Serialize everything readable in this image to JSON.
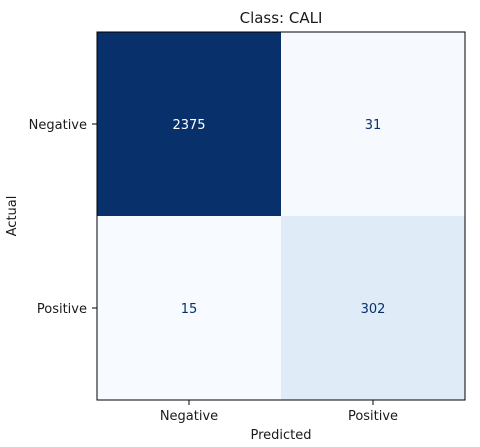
{
  "chart_data": {
    "type": "heatmap",
    "title": "Class: CALI",
    "xlabel": "Predicted",
    "ylabel": "Actual",
    "x_categories": [
      "Negative",
      "Positive"
    ],
    "y_categories": [
      "Negative",
      "Positive"
    ],
    "values": [
      [
        2375,
        31
      ],
      [
        15,
        302
      ]
    ],
    "colormap": "Blues",
    "colors": {
      "max": "#08306b",
      "min": "#f7fbff",
      "light_text": "#ffffff",
      "dark_text": "#08306b"
    },
    "grid": false,
    "colorbar": false
  }
}
